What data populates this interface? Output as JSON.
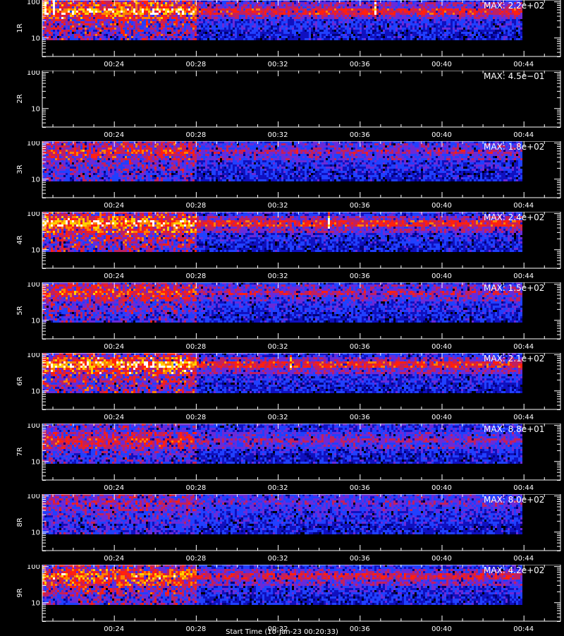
{
  "chart_data": {
    "type": "heatmap",
    "x_axis": {
      "tick_labels": [
        "00:24",
        "00:28",
        "00:32",
        "00:36",
        "00:40",
        "00:44"
      ],
      "tick_minutes": [
        24,
        28,
        32,
        36,
        40,
        44
      ],
      "range_minutes": [
        20.5,
        45.8
      ],
      "data_end_minute": 43.9
    },
    "y_axis": {
      "scale": "log",
      "range": [
        3,
        110
      ],
      "tick_labels": [
        "10",
        "100"
      ],
      "tick_values": [
        10,
        100
      ]
    },
    "colormap": [
      "#000000",
      "#00007a",
      "#1010c0",
      "#2040ff",
      "#6a2ad8",
      "#c02060",
      "#ff2010",
      "#ff8000",
      "#ffd000",
      "#ffffff"
    ],
    "panels": [
      {
        "label": "1R",
        "max_text": "MAX: 2.2e+02",
        "max": 220,
        "activity": 0.85,
        "band": 58
      },
      {
        "label": "2R",
        "max_text": "MAX: 4.5e−01",
        "max": 0.45,
        "activity": 0.0,
        "band": 0
      },
      {
        "label": "3R",
        "max_text": "MAX: 1.8e+02",
        "max": 180,
        "activity": 0.55,
        "band": 60
      },
      {
        "label": "4R",
        "max_text": "MAX: 2.4e+02",
        "max": 240,
        "activity": 0.9,
        "band": 55
      },
      {
        "label": "5R",
        "max_text": "MAX: 1.5e+02",
        "max": 150,
        "activity": 0.6,
        "band": 60
      },
      {
        "label": "6R",
        "max_text": "MAX: 2.1e+02",
        "max": 210,
        "activity": 0.9,
        "band": 55
      },
      {
        "label": "7R",
        "max_text": "MAX: 8.8e+01",
        "max": 88,
        "activity": 0.5,
        "band": 40
      },
      {
        "label": "8R",
        "max_text": "MAX: 8.0e+02",
        "max": 800,
        "activity": 0.35,
        "band": 70
      },
      {
        "label": "9R",
        "max_text": "MAX: 4.2e+02",
        "max": 420,
        "activity": 0.75,
        "band": 55
      }
    ],
    "x_axis_title": "Start Time (10-Jan-23 00:20:33)"
  }
}
